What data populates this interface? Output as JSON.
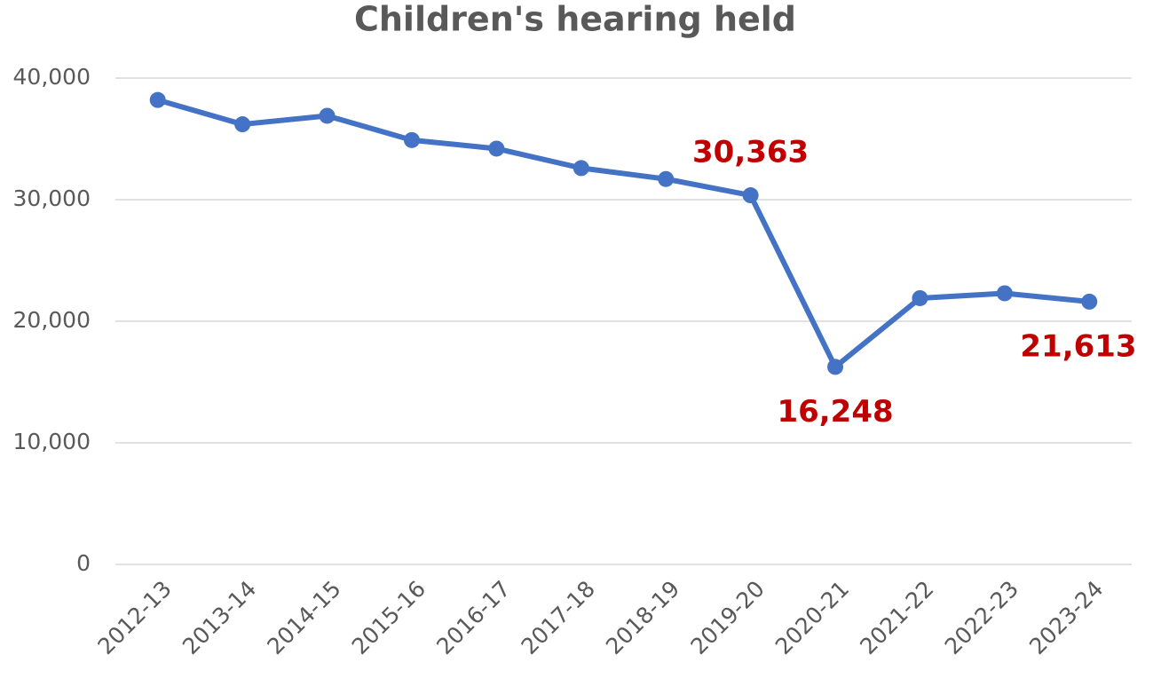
{
  "chart_data": {
    "type": "line",
    "title": "Children's hearing held",
    "categories": [
      "2012-13",
      "2013-14",
      "2014-15",
      "2015-16",
      "2016-17",
      "2017-18",
      "2018-19",
      "2019-20",
      "2020-21",
      "2021-22",
      "2022-23",
      "2023-24"
    ],
    "series": [
      {
        "name": "Children's hearing held",
        "color": "#4472c4",
        "values": [
          38200,
          36200,
          36900,
          34900,
          34200,
          32600,
          31700,
          30363,
          16248,
          21900,
          22300,
          21613
        ],
        "value_labels": [
          null,
          null,
          null,
          null,
          null,
          null,
          null,
          "30,363",
          "16,248",
          null,
          null,
          "21,613"
        ]
      }
    ],
    "ylim": [
      0,
      40000
    ],
    "yticks": [
      0,
      {
        "value": 10000,
        "label": "10,000"
      },
      {
        "value": 20000,
        "label": "20,000"
      },
      {
        "value": 30000,
        "label": "30,000"
      },
      {
        "value": 40000,
        "label": "40,000"
      }
    ],
    "grid": true,
    "label_color": "#c00000"
  }
}
